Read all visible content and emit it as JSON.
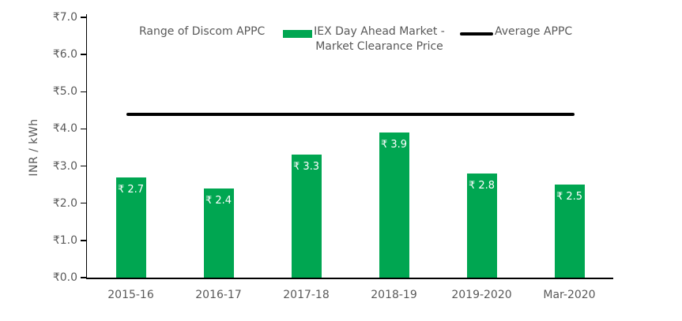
{
  "legend": {
    "range_label": "Range of Discom APPC",
    "iex_label_line1": "IEX Day Ahead Market -",
    "iex_label_line2": "Market Clearance Price",
    "avg_label": "Average APPC"
  },
  "colors": {
    "bar": "#00A651",
    "average_line": "#000000",
    "axis_line": "#000000",
    "axis_text": "#595959",
    "data_label_text": "#ffffff",
    "background": "#ffffff"
  },
  "chart_data": {
    "type": "bar",
    "title": "",
    "xlabel": "",
    "ylabel": "INR / kWh",
    "ylim": [
      0.0,
      7.0
    ],
    "ytick_step": 1.0,
    "ytick_labels": [
      "₹0.0",
      "₹1.0",
      "₹2.0",
      "₹3.0",
      "₹4.0",
      "₹5.0",
      "₹6.0",
      "₹7.0"
    ],
    "grid": false,
    "legend_position": "top",
    "legend_entries": [
      "Range of Discom APPC",
      "IEX Day Ahead Market - Market Clearance Price",
      "Average APPC"
    ],
    "categories": [
      "2015-16",
      "2016-17",
      "2017-18",
      "2018-19",
      "2019-2020",
      "Mar-2020"
    ],
    "series": [
      {
        "name": "IEX Day Ahead Market - Market Clearance Price",
        "type": "bar",
        "color": "#00A651",
        "values": [
          2.7,
          2.4,
          3.3,
          3.9,
          2.8,
          2.5
        ],
        "data_labels": [
          "₹ 2.7",
          "₹ 2.4",
          "₹ 3.3",
          "₹ 3.9",
          "₹ 2.8",
          "₹ 2.5"
        ]
      },
      {
        "name": "Average APPC",
        "type": "line",
        "color": "#000000",
        "value": 4.4
      }
    ]
  }
}
